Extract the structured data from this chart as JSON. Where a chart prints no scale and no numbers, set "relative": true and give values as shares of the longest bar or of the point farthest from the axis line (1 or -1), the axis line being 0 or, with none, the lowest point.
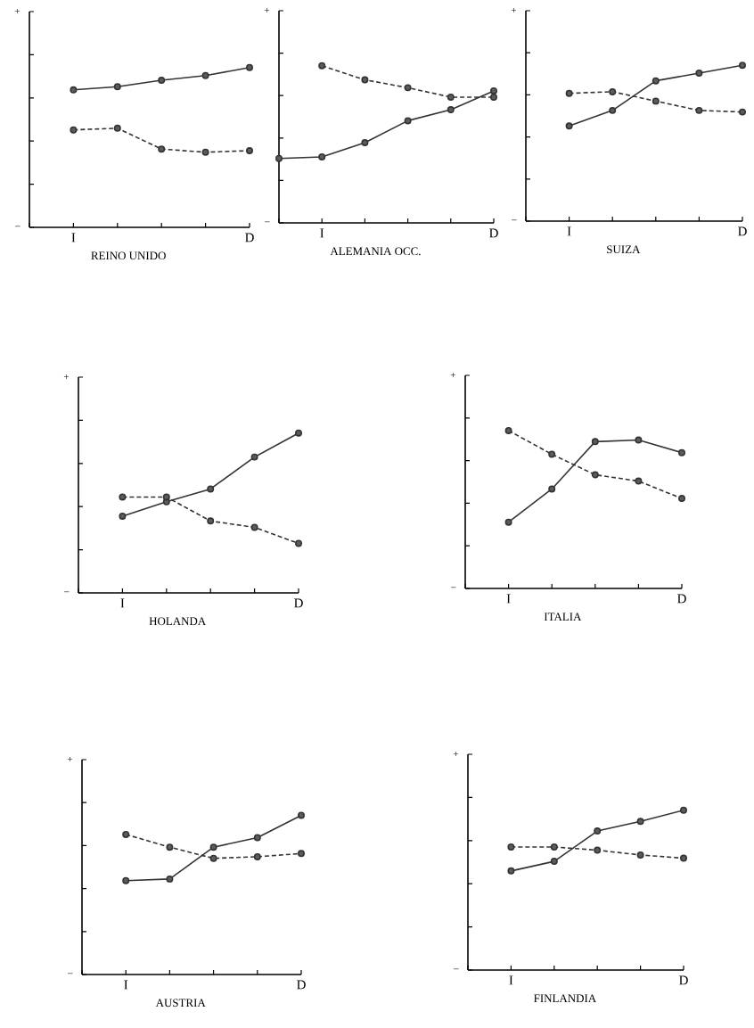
{
  "chart_data": [
    {
      "type": "line",
      "title": "REINO UNIDO",
      "categories": [
        null,
        "I",
        null,
        null,
        null,
        "D"
      ],
      "relative": true,
      "marker": "circle",
      "annotations": [
        "+",
        "–"
      ],
      "series": [
        {
          "color": "#333333",
          "line_style": "solid",
          "values": [
            null,
            0.86,
            0.88,
            0.92,
            0.95,
            1
          ]
        },
        {
          "color": "#333333",
          "line_style": "dashed",
          "values": [
            null,
            0.61,
            0.62,
            0.49,
            0.47,
            0.48
          ]
        }
      ]
    },
    {
      "type": "line",
      "title": "ALEMANIA OCC.",
      "categories": [
        null,
        "I",
        null,
        null,
        null,
        "D"
      ],
      "relative": true,
      "marker": "circle",
      "annotations": [
        "+",
        "–"
      ],
      "series": [
        {
          "color": "#333333",
          "line_style": "solid",
          "values": [
            0.41,
            0.42,
            0.51,
            0.65,
            0.72,
            0.84
          ]
        },
        {
          "color": "#333333",
          "line_style": "dashed",
          "values": [
            null,
            1,
            0.91,
            0.86,
            0.8,
            0.8
          ]
        }
      ]
    },
    {
      "type": "line",
      "title": "SUIZA",
      "categories": [
        null,
        "I",
        null,
        null,
        null,
        "D"
      ],
      "relative": true,
      "marker": "circle",
      "annotations": [
        "+",
        "–"
      ],
      "series": [
        {
          "color": "#333333",
          "line_style": "solid",
          "values": [
            null,
            0.61,
            0.71,
            0.9,
            0.95,
            1
          ]
        },
        {
          "color": "#333333",
          "line_style": "dashed",
          "values": [
            null,
            0.82,
            0.83,
            0.77,
            0.71,
            0.7
          ]
        }
      ]
    },
    {
      "type": "line",
      "title": "HOLANDA",
      "categories": [
        null,
        "I",
        null,
        null,
        null,
        "D"
      ],
      "relative": true,
      "marker": "circle",
      "annotations": [
        "+",
        "–"
      ],
      "series": [
        {
          "color": "#333333",
          "line_style": "solid",
          "values": [
            null,
            0.48,
            0.57,
            0.65,
            0.85,
            1
          ]
        },
        {
          "color": "#333333",
          "line_style": "dashed",
          "values": [
            null,
            0.6,
            0.6,
            0.45,
            0.41,
            0.31
          ]
        }
      ]
    },
    {
      "type": "line",
      "title": "ITALIA",
      "categories": [
        null,
        "I",
        null,
        null,
        null,
        "D"
      ],
      "relative": true,
      "marker": "circle",
      "annotations": [
        "+",
        "–"
      ],
      "series": [
        {
          "color": "#333333",
          "line_style": "solid",
          "values": [
            null,
            0.42,
            0.63,
            0.93,
            0.94,
            0.86
          ]
        },
        {
          "color": "#333333",
          "line_style": "dashed",
          "values": [
            null,
            1,
            0.85,
            0.72,
            0.68,
            0.57
          ]
        }
      ]
    },
    {
      "type": "line",
      "title": "AUSTRIA",
      "categories": [
        null,
        "I",
        null,
        null,
        null,
        "D"
      ],
      "relative": true,
      "marker": "circle",
      "annotations": [
        "+",
        "–"
      ],
      "series": [
        {
          "color": "#333333",
          "line_style": "solid",
          "values": [
            null,
            0.59,
            0.6,
            0.8,
            0.86,
            1
          ]
        },
        {
          "color": "#333333",
          "line_style": "dashed",
          "values": [
            null,
            0.88,
            0.8,
            0.73,
            0.74,
            0.76
          ]
        }
      ]
    },
    {
      "type": "line",
      "title": "FINLANDIA",
      "categories": [
        null,
        "I",
        null,
        null,
        null,
        "D"
      ],
      "relative": true,
      "marker": "circle",
      "annotations": [
        "+",
        "–"
      ],
      "series": [
        {
          "color": "#333333",
          "line_style": "solid",
          "values": [
            null,
            0.62,
            0.68,
            0.87,
            0.93,
            1
          ]
        },
        {
          "color": "#333333",
          "line_style": "dashed",
          "values": [
            null,
            0.77,
            0.77,
            0.75,
            0.72,
            0.7
          ]
        }
      ]
    }
  ]
}
